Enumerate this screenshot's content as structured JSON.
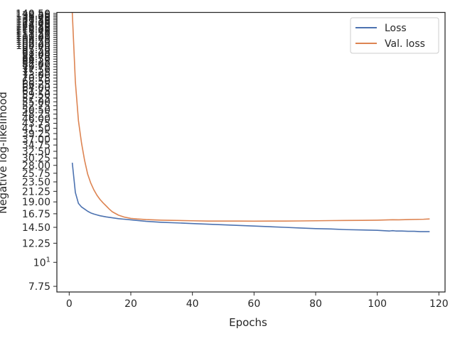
{
  "chart_data": {
    "type": "line",
    "title": "",
    "xlabel": "Epochs",
    "ylabel": "Negative log-likelihood",
    "yscale": "log",
    "xlim": [
      -4,
      122
    ],
    "ylim": [
      7.3,
      142
    ],
    "grid": false,
    "legend": "top-right",
    "x_ticks": [
      0,
      20,
      40,
      60,
      80,
      100,
      120
    ],
    "x_tick_labels": [
      "0",
      "20",
      "40",
      "60",
      "80",
      "100",
      "120"
    ],
    "y_ticks": [
      7.75,
      10,
      12.25,
      14.5,
      16.75,
      19.0,
      21.25,
      23.5,
      25.75,
      28.0,
      30.25,
      32.5,
      34.75,
      37.0,
      39.25,
      41.5,
      43.75,
      46.0,
      48.25,
      50.5,
      52.75,
      55.0,
      57.25,
      59.5,
      61.75,
      64.0,
      66.25,
      68.5,
      70.75,
      73.0,
      75.25,
      77.5,
      79.75,
      82.0,
      84.25,
      86.5,
      88.75,
      91.0,
      93.25,
      95.5,
      97.75,
      100.0,
      102.25,
      104.5,
      106.75,
      109.0,
      111.25,
      113.5,
      115.75,
      118.0,
      120.25,
      122.5,
      124.75,
      127.0,
      129.25,
      131.5,
      133.75,
      136.0,
      138.25,
      140.5
    ],
    "y_tick_labels": [
      "7.75",
      "10^1",
      "12.25",
      "14.50",
      "16.75",
      "19.00",
      "21.25",
      "23.50",
      "25.75",
      "28.00",
      "30.25",
      "32.50",
      "34.75",
      "37.00",
      "39.25",
      "41.50",
      "43.75",
      "46.00",
      "48.25",
      "50.50",
      "52.75",
      "55.00",
      "57.25",
      "59.50",
      "61.75",
      "64.00",
      "66.25",
      "68.50",
      "70.75",
      "73.00",
      "75.25",
      "77.50",
      "79.75",
      "82.00",
      "84.25",
      "86.50",
      "88.75",
      "91.00",
      "93.25",
      "95.50",
      "97.75",
      "100.00",
      "102.25",
      "104.50",
      "106.75",
      "109.00",
      "111.25",
      "113.50",
      "115.75",
      "118.00",
      "120.25",
      "122.50",
      "124.75",
      "127.00",
      "129.25",
      "131.50",
      "133.75",
      "136.00",
      "138.25",
      "140.50"
    ],
    "series": [
      {
        "name": "Loss",
        "color": "#4c72b0",
        "x": [
          1,
          2,
          3,
          4,
          5,
          6,
          7,
          8,
          9,
          10,
          12,
          14,
          16,
          18,
          20,
          25,
          30,
          35,
          40,
          45,
          50,
          55,
          60,
          65,
          70,
          75,
          80,
          85,
          90,
          95,
          100,
          104,
          105,
          106,
          108,
          110,
          112,
          114,
          115,
          116,
          117
        ],
        "y": [
          28.8,
          21.0,
          18.7,
          18.0,
          17.6,
          17.2,
          16.9,
          16.7,
          16.55,
          16.4,
          16.2,
          16.05,
          15.9,
          15.8,
          15.7,
          15.45,
          15.3,
          15.2,
          15.1,
          15.0,
          14.9,
          14.8,
          14.7,
          14.6,
          14.5,
          14.4,
          14.3,
          14.25,
          14.15,
          14.1,
          14.05,
          13.95,
          14.0,
          13.95,
          13.95,
          13.9,
          13.9,
          13.85,
          13.85,
          13.85,
          13.85
        ]
      },
      {
        "name": "Val. loss",
        "color": "#dd8452",
        "x": [
          1,
          2,
          3,
          4,
          5,
          6,
          7,
          8,
          9,
          10,
          11,
          12,
          13,
          14,
          15,
          16,
          18,
          20,
          22,
          25,
          30,
          35,
          40,
          45,
          50,
          55,
          60,
          65,
          70,
          75,
          80,
          85,
          90,
          95,
          100,
          105,
          107,
          110,
          115,
          117
        ],
        "y": [
          142,
          68,
          45,
          35.5,
          29.5,
          25.5,
          23.2,
          21.6,
          20.4,
          19.5,
          18.8,
          18.2,
          17.6,
          17.1,
          16.8,
          16.5,
          16.15,
          15.95,
          15.85,
          15.75,
          15.65,
          15.6,
          15.55,
          15.5,
          15.5,
          15.5,
          15.48,
          15.5,
          15.5,
          15.52,
          15.55,
          15.58,
          15.6,
          15.62,
          15.65,
          15.72,
          15.7,
          15.75,
          15.8,
          15.85
        ]
      }
    ]
  }
}
